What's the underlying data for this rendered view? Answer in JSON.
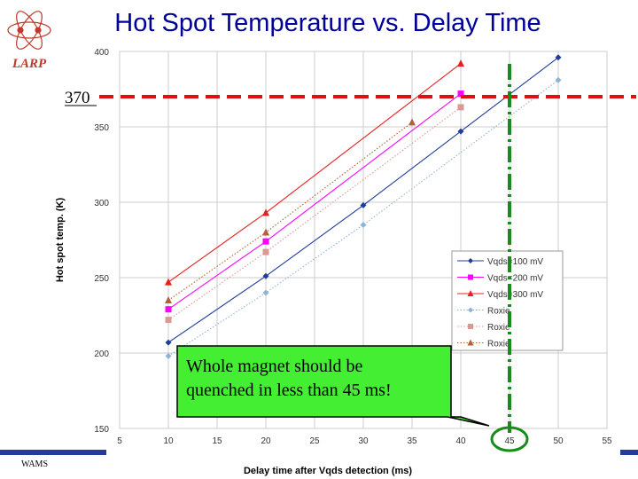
{
  "slide": {
    "title": "Hot Spot Temperature vs. Delay Time",
    "logo_text": "LARP",
    "footer_left": "WAMS",
    "marker_label": "370",
    "callout_text_line1": "Whole magnet should be",
    "callout_text_line2": "quenched in less than 45 ms!"
  },
  "colors": {
    "title": "#000099",
    "blue": "#1f3d99",
    "magenta": "#ff00ff",
    "red": "#e8201c",
    "lightblue": "#8fb4d6",
    "pink": "#d99a93",
    "brown": "#b0603a",
    "threshold": "#dd1111",
    "deadline": "#1a8a1a",
    "callout_fill": "#44ee33"
  },
  "chart_data": {
    "type": "line",
    "xlabel": "Delay time after Vqds detection (ms)",
    "ylabel": "Hot spot temp. (K)",
    "xlim": [
      5,
      55
    ],
    "ylim": [
      150,
      400
    ],
    "xticks": [
      5,
      10,
      15,
      20,
      25,
      30,
      35,
      40,
      45,
      50,
      55
    ],
    "yticks": [
      150,
      200,
      250,
      300,
      350,
      400
    ],
    "grid": true,
    "legend_position": "bottom-right",
    "series": [
      {
        "name": "Vqds=100 mV",
        "style": "solid",
        "marker": "diamond",
        "color": "#1f3d99",
        "x": [
          10,
          20,
          30,
          40,
          50
        ],
        "y": [
          207,
          251,
          298,
          347,
          396
        ]
      },
      {
        "name": "Vqds=200 mV",
        "style": "solid",
        "marker": "square",
        "color": "#ff00ff",
        "x": [
          10,
          20,
          40
        ],
        "y": [
          229,
          274,
          372
        ]
      },
      {
        "name": "Vqds=300 mV",
        "style": "solid",
        "marker": "triangle",
        "color": "#e8201c",
        "x": [
          10,
          20,
          40
        ],
        "y": [
          247,
          293,
          392
        ]
      },
      {
        "name": "Roxie",
        "style": "dotted",
        "marker": "diamond",
        "color": "#8fb4d6",
        "x": [
          10,
          20,
          30,
          50
        ],
        "y": [
          198,
          240,
          285,
          381
        ]
      },
      {
        "name": "Roxie",
        "style": "dotted",
        "marker": "square",
        "color": "#d99a93",
        "x": [
          10,
          20,
          40
        ],
        "y": [
          222,
          267,
          363
        ]
      },
      {
        "name": "Roxie",
        "style": "dotted",
        "marker": "triangle",
        "color": "#b0603a",
        "x": [
          10,
          20,
          35
        ],
        "y": [
          235,
          280,
          353
        ]
      }
    ],
    "annotations": {
      "threshold_temperature": 370,
      "deadline_ms": 45
    }
  }
}
